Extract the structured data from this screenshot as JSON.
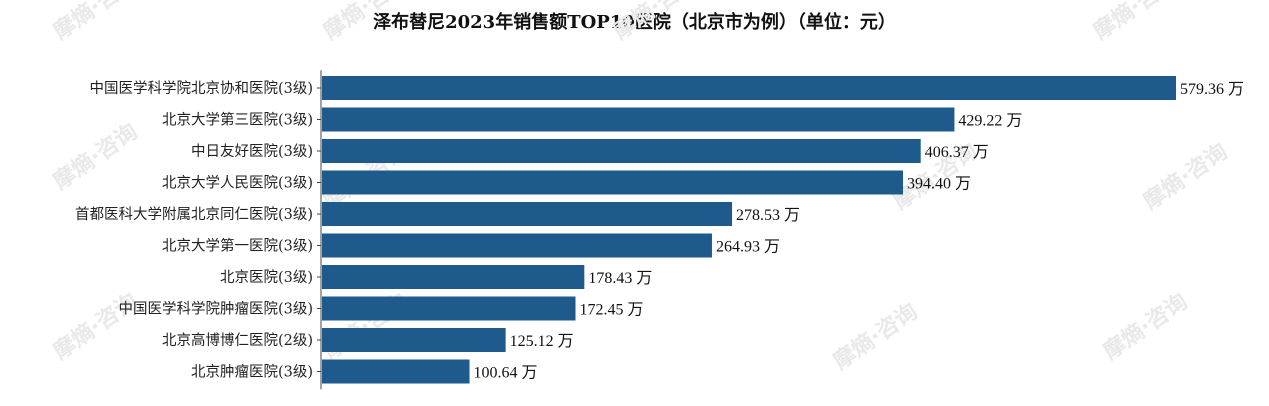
{
  "chart_data": {
    "type": "bar",
    "orientation": "horizontal",
    "title": "泽布替尼2023年销售额TOP10医院（北京市为例）（单位：元）",
    "categories": [
      "中国医学科学院北京协和医院(3级)",
      "北京大学第三医院(3级)",
      "中日友好医院(3级)",
      "北京大学人民医院(3级)",
      "首都医科大学附属北京同仁医院(3级)",
      "北京大学第一医院(3级)",
      "北京医院(3级)",
      "中国医学科学院肿瘤医院(3级)",
      "北京高博博仁医院(2级)",
      "北京肿瘤医院(3级)"
    ],
    "values": [
      579.36,
      429.22,
      406.37,
      394.4,
      278.53,
      264.93,
      178.43,
      172.45,
      125.12,
      100.64
    ],
    "value_labels": [
      "579.36 万",
      "429.22 万",
      "406.37 万",
      "394.40 万",
      "278.53 万",
      "264.93 万",
      "178.43 万",
      "172.45 万",
      "125.12 万",
      "100.64 万"
    ],
    "unit": "万",
    "xlim": [
      0,
      579.36
    ],
    "bar_color": "#1f5a8c",
    "grid": false
  },
  "watermark": {
    "text": "摩熵·咨询",
    "color": "#e6e6e6"
  }
}
